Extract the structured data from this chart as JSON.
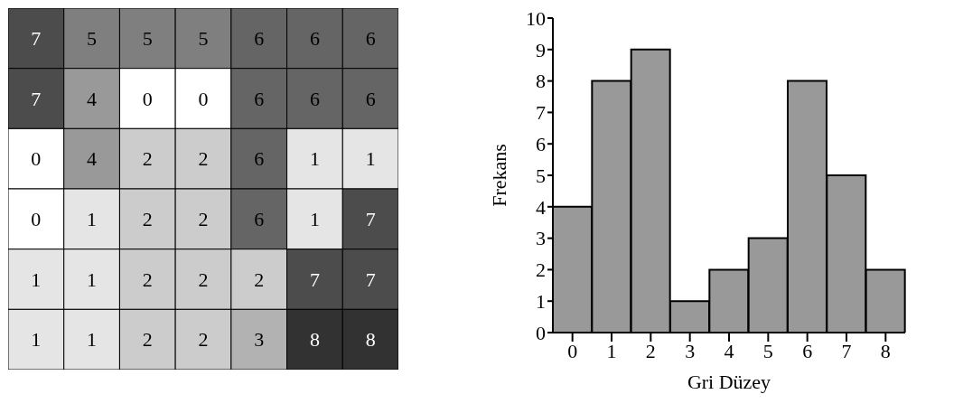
{
  "chart_data": [
    {
      "type": "heatmap",
      "categories": [
        null,
        null,
        null,
        null,
        null,
        null,
        null
      ],
      "y_categories": [
        null,
        null,
        null,
        null,
        null,
        null
      ],
      "data_labels": true,
      "cells": [
        [
          7,
          5,
          5,
          5,
          6,
          6,
          6
        ],
        [
          7,
          4,
          0,
          0,
          6,
          6,
          6
        ],
        [
          0,
          4,
          2,
          2,
          6,
          1,
          1
        ],
        [
          0,
          1,
          2,
          2,
          6,
          1,
          7
        ],
        [
          1,
          1,
          2,
          2,
          2,
          7,
          7
        ],
        [
          1,
          1,
          2,
          2,
          3,
          8,
          8
        ]
      ]
    },
    {
      "type": "bar",
      "categories": [
        "0",
        "1",
        "2",
        "3",
        "4",
        "5",
        "6",
        "7",
        "8"
      ],
      "values": [
        4,
        8,
        9,
        1,
        2,
        3,
        8,
        5,
        2
      ],
      "color": "#999999",
      "ylim": [
        0,
        10
      ],
      "yticks": [
        0,
        1,
        2,
        3,
        4,
        5,
        6,
        7,
        8,
        9,
        10
      ],
      "xlabel": "Gri Düzey",
      "ylabel": "Frekans"
    }
  ]
}
